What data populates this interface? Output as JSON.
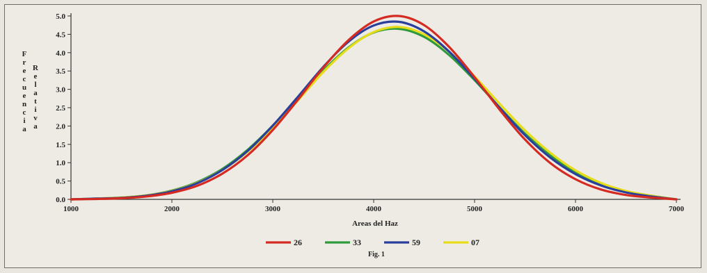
{
  "chart_data": {
    "type": "line",
    "title": "",
    "xlabel": "Areas del Haz",
    "ylabel": "Frecuencia Relativa",
    "ylabel_words": [
      "Frecuencia",
      "Relativa"
    ],
    "caption": "Fig. 1",
    "xlim": [
      1000,
      7000
    ],
    "ylim": [
      0,
      5.0
    ],
    "x_ticks": [
      1000,
      2000,
      3000,
      4000,
      5000,
      6000,
      7000
    ],
    "y_ticks": [
      "0.0",
      "0.5",
      "1.0",
      "1.5",
      "2.0",
      "2.5",
      "3.0",
      "3.5",
      "4.0",
      "4.5",
      "5.0"
    ],
    "grid": false,
    "legend_position": "bottom",
    "x": [
      1000,
      1250,
      1500,
      1750,
      2000,
      2250,
      2500,
      2750,
      3000,
      3250,
      3500,
      3750,
      4000,
      4250,
      4500,
      4750,
      5000,
      5250,
      5500,
      5750,
      6000,
      6250,
      6500,
      6750,
      7000
    ],
    "series": [
      {
        "name": "26",
        "color": "#d42a22",
        "values": [
          0.0,
          0.01,
          0.03,
          0.08,
          0.18,
          0.37,
          0.7,
          1.2,
          1.89,
          2.72,
          3.59,
          4.34,
          4.85,
          5.0,
          4.75,
          4.15,
          3.33,
          2.44,
          1.63,
          0.99,
          0.55,
          0.27,
          0.12,
          0.05,
          0.0
        ]
      },
      {
        "name": "33",
        "color": "#2e9a3c",
        "values": [
          0.0,
          0.02,
          0.05,
          0.11,
          0.24,
          0.47,
          0.83,
          1.35,
          2.01,
          2.76,
          3.51,
          4.14,
          4.55,
          4.65,
          4.43,
          3.93,
          3.25,
          2.5,
          1.79,
          1.2,
          0.74,
          0.43,
          0.22,
          0.1,
          0.0
        ]
      },
      {
        "name": "59",
        "color": "#2a3f9c",
        "values": [
          0.0,
          0.02,
          0.04,
          0.1,
          0.22,
          0.44,
          0.8,
          1.32,
          2.01,
          2.8,
          3.61,
          4.3,
          4.74,
          4.84,
          4.58,
          4.02,
          3.29,
          2.49,
          1.75,
          1.14,
          0.69,
          0.38,
          0.19,
          0.08,
          0.0
        ]
      },
      {
        "name": "07",
        "color": "#e6dc1a",
        "values": [
          0.0,
          0.02,
          0.05,
          0.11,
          0.23,
          0.45,
          0.8,
          1.3,
          1.95,
          2.7,
          3.47,
          4.12,
          4.56,
          4.7,
          4.5,
          4.02,
          3.35,
          2.6,
          1.88,
          1.27,
          0.79,
          0.45,
          0.23,
          0.1,
          0.0
        ]
      }
    ]
  }
}
